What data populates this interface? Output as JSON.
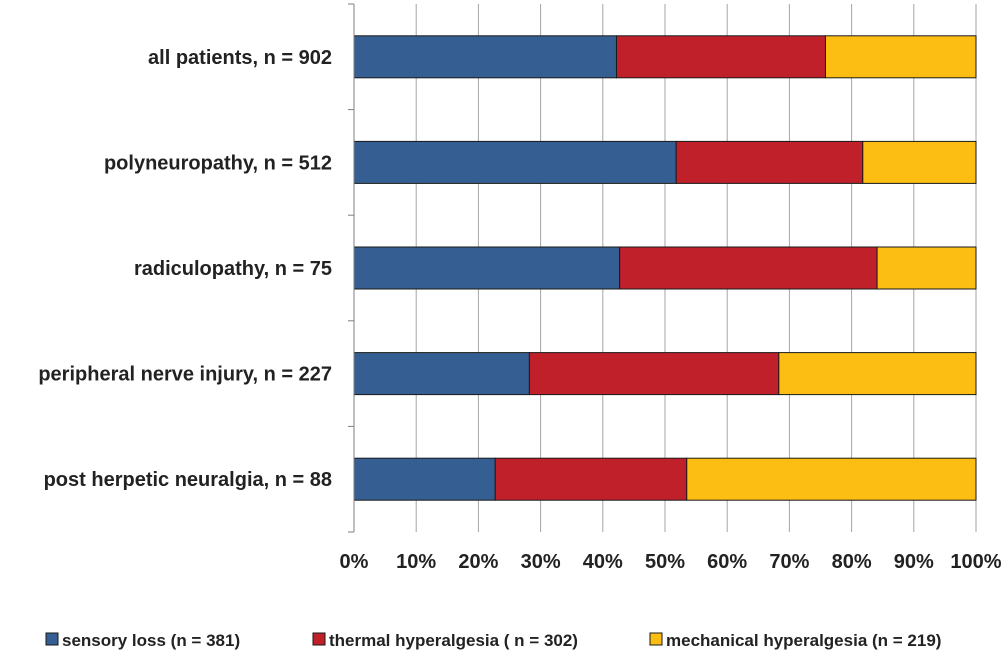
{
  "chart_data": {
    "type": "bar",
    "orientation": "horizontal",
    "stacked": true,
    "normalized_percent": true,
    "categories": [
      "all patients, n = 902",
      "polyneuropathy, n = 512",
      "radiculopathy, n = 75",
      "peripheral nerve injury, n = 227",
      "post herpetic neuralgia, n = 88"
    ],
    "series": [
      {
        "name": "sensory loss (n = 381)",
        "color": "#355f93",
        "values": [
          42.2,
          51.8,
          42.7,
          28.2,
          22.7
        ]
      },
      {
        "name": "thermal hyperalgesia ( n = 302)",
        "color": "#c0202a",
        "values": [
          33.6,
          30.0,
          41.4,
          40.1,
          30.8
        ]
      },
      {
        "name": "mechanical hyperalgesia (n = 219)",
        "color": "#fcbe13",
        "values": [
          24.2,
          18.2,
          15.9,
          31.7,
          46.5
        ]
      }
    ],
    "x_ticks": [
      "0%",
      "10%",
      "20%",
      "30%",
      "40%",
      "50%",
      "60%",
      "70%",
      "80%",
      "90%",
      "100%"
    ],
    "xlim": [
      0,
      100
    ],
    "grid": "vertical",
    "legend_position": "bottom",
    "title": "",
    "xlabel": "",
    "ylabel": ""
  }
}
